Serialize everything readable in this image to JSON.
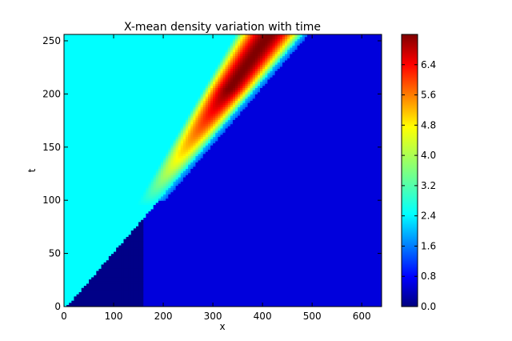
{
  "chart_data": {
    "type": "heatmap",
    "title": "X-mean density variation with time",
    "xlabel": "x",
    "ylabel": "t",
    "xlim": [
      0,
      640
    ],
    "ylim": [
      0,
      256
    ],
    "x_ticks": [
      "0",
      "100",
      "200",
      "300",
      "400",
      "500",
      "600"
    ],
    "y_ticks": [
      "0",
      "50",
      "100",
      "150",
      "200",
      "250"
    ],
    "colorbar": {
      "min": 0.0,
      "max": 7.2,
      "ticks": [
        "0.0",
        "0.8",
        "1.6",
        "2.4",
        "3.2",
        "4.0",
        "4.8",
        "5.6",
        "6.4"
      ],
      "colormap": "jet"
    },
    "regions": {
      "left_background_density": 2.7,
      "right_background_density": 0.65,
      "initial_shelf_density": 0.05,
      "initial_shelf_x": [
        0,
        160
      ],
      "boundary_line": {
        "x_at_t0": 5,
        "x_at_t256": 480
      },
      "peak_band": {
        "x_start_at_t100": 175,
        "x_end_at_t256": 430,
        "max_density": 7.0
      }
    }
  }
}
